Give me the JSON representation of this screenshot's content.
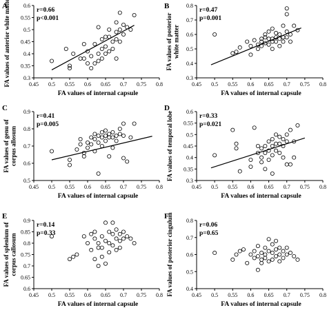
{
  "chart_data": [
    {
      "type": "scatter",
      "panel": "A",
      "r_text": "r=0.66",
      "p_text": "p<0.001",
      "xlabel": "FA values of internal capsule",
      "ylabel": "FA values of anterior white matter",
      "xlim": [
        0.45,
        0.8
      ],
      "ylim": [
        0.3,
        0.6
      ],
      "x_ticks": [
        "0.45",
        "0.5",
        "0.55",
        "0.6",
        "0.65",
        "0.7",
        "0.75",
        "0.8"
      ],
      "y_ticks": [
        "0.3",
        "0.35",
        "0.4",
        "0.45",
        "0.5",
        "0.55",
        "0.6"
      ],
      "fit_line": {
        "x": [
          0.5,
          0.73
        ],
        "y": [
          0.333,
          0.518
        ]
      },
      "points": [
        [
          0.5,
          0.37
        ],
        [
          0.54,
          0.42
        ],
        [
          0.55,
          0.35
        ],
        [
          0.55,
          0.34
        ],
        [
          0.56,
          0.4
        ],
        [
          0.58,
          0.38
        ],
        [
          0.59,
          0.44
        ],
        [
          0.59,
          0.38
        ],
        [
          0.6,
          0.41
        ],
        [
          0.6,
          0.36
        ],
        [
          0.61,
          0.39
        ],
        [
          0.61,
          0.34
        ],
        [
          0.62,
          0.36
        ],
        [
          0.62,
          0.44
        ],
        [
          0.63,
          0.51
        ],
        [
          0.63,
          0.4
        ],
        [
          0.63,
          0.37
        ],
        [
          0.64,
          0.46
        ],
        [
          0.64,
          0.42
        ],
        [
          0.64,
          0.38
        ],
        [
          0.65,
          0.47
        ],
        [
          0.65,
          0.43
        ],
        [
          0.65,
          0.4
        ],
        [
          0.66,
          0.5
        ],
        [
          0.66,
          0.47
        ],
        [
          0.66,
          0.41
        ],
        [
          0.67,
          0.45
        ],
        [
          0.67,
          0.42
        ],
        [
          0.68,
          0.53
        ],
        [
          0.68,
          0.49
        ],
        [
          0.68,
          0.46
        ],
        [
          0.68,
          0.38
        ],
        [
          0.69,
          0.57
        ],
        [
          0.69,
          0.5
        ],
        [
          0.69,
          0.45
        ],
        [
          0.7,
          0.52
        ],
        [
          0.7,
          0.48
        ],
        [
          0.71,
          0.51
        ],
        [
          0.72,
          0.5
        ],
        [
          0.73,
          0.56
        ]
      ]
    },
    {
      "type": "scatter",
      "panel": "B",
      "r_text": "r=0.47",
      "p_text": "p=0.001",
      "xlabel": "FA values of internal capsule",
      "ylabel": "FA values of posterior white matter",
      "xlim": [
        0.45,
        0.8
      ],
      "ylim": [
        0.3,
        0.8
      ],
      "x_ticks": [
        "0.45",
        "0.5",
        "0.55",
        "0.6",
        "0.65",
        "0.7",
        "0.75",
        "0.8"
      ],
      "y_ticks": [
        "0.3",
        "0.4",
        "0.5",
        "0.6",
        "0.7",
        "0.8"
      ],
      "fit_line": {
        "x": [
          0.49,
          0.74
        ],
        "y": [
          0.39,
          0.645
        ]
      },
      "points": [
        [
          0.5,
          0.6
        ],
        [
          0.55,
          0.47
        ],
        [
          0.56,
          0.48
        ],
        [
          0.57,
          0.51
        ],
        [
          0.59,
          0.55
        ],
        [
          0.6,
          0.46
        ],
        [
          0.6,
          0.52
        ],
        [
          0.61,
          0.56
        ],
        [
          0.62,
          0.53
        ],
        [
          0.62,
          0.5
        ],
        [
          0.63,
          0.57
        ],
        [
          0.63,
          0.55
        ],
        [
          0.63,
          0.52
        ],
        [
          0.64,
          0.6
        ],
        [
          0.64,
          0.58
        ],
        [
          0.64,
          0.54
        ],
        [
          0.65,
          0.62
        ],
        [
          0.65,
          0.57
        ],
        [
          0.65,
          0.53
        ],
        [
          0.66,
          0.64
        ],
        [
          0.66,
          0.57
        ],
        [
          0.66,
          0.55
        ],
        [
          0.66,
          0.5
        ],
        [
          0.67,
          0.61
        ],
        [
          0.67,
          0.58
        ],
        [
          0.67,
          0.55
        ],
        [
          0.68,
          0.6
        ],
        [
          0.68,
          0.57
        ],
        [
          0.68,
          0.52
        ],
        [
          0.69,
          0.66
        ],
        [
          0.69,
          0.58
        ],
        [
          0.69,
          0.55
        ],
        [
          0.7,
          0.78
        ],
        [
          0.7,
          0.74
        ],
        [
          0.7,
          0.62
        ],
        [
          0.7,
          0.58
        ],
        [
          0.71,
          0.6
        ],
        [
          0.71,
          0.55
        ],
        [
          0.72,
          0.66
        ],
        [
          0.73,
          0.63
        ]
      ]
    },
    {
      "type": "scatter",
      "panel": "C",
      "r_text": "r=0.41",
      "p_text": "p=0.005",
      "xlabel": "FA values of internal capsule",
      "ylabel": "FA values of genu of corpus allosum",
      "xlim": [
        0.45,
        0.8
      ],
      "ylim": [
        0.5,
        0.9
      ],
      "x_ticks": [
        "0.45",
        "0.5",
        "0.55",
        "0.6",
        "0.65",
        "0.7",
        "0.75",
        "0.8"
      ],
      "y_ticks": [
        "0.5",
        "0.6",
        "0.7",
        "0.8",
        "0.9"
      ],
      "fit_line": {
        "x": [
          0.5,
          0.78
        ],
        "y": [
          0.62,
          0.757
        ]
      },
      "points": [
        [
          0.5,
          0.67
        ],
        [
          0.55,
          0.62
        ],
        [
          0.55,
          0.59
        ],
        [
          0.57,
          0.68
        ],
        [
          0.58,
          0.74
        ],
        [
          0.58,
          0.71
        ],
        [
          0.59,
          0.66
        ],
        [
          0.59,
          0.64
        ],
        [
          0.6,
          0.72
        ],
        [
          0.6,
          0.69
        ],
        [
          0.61,
          0.75
        ],
        [
          0.61,
          0.71
        ],
        [
          0.62,
          0.77
        ],
        [
          0.62,
          0.74
        ],
        [
          0.62,
          0.67
        ],
        [
          0.63,
          0.76
        ],
        [
          0.63,
          0.72
        ],
        [
          0.63,
          0.54
        ],
        [
          0.64,
          0.78
        ],
        [
          0.64,
          0.75
        ],
        [
          0.64,
          0.7
        ],
        [
          0.65,
          0.79
        ],
        [
          0.65,
          0.76
        ],
        [
          0.65,
          0.73
        ],
        [
          0.66,
          0.77
        ],
        [
          0.66,
          0.75
        ],
        [
          0.66,
          0.64
        ],
        [
          0.67,
          0.78
        ],
        [
          0.67,
          0.75
        ],
        [
          0.67,
          0.69
        ],
        [
          0.68,
          0.76
        ],
        [
          0.68,
          0.73
        ],
        [
          0.69,
          0.8
        ],
        [
          0.69,
          0.77
        ],
        [
          0.7,
          0.83
        ],
        [
          0.7,
          0.76
        ],
        [
          0.7,
          0.63
        ],
        [
          0.71,
          0.61
        ],
        [
          0.72,
          0.75
        ],
        [
          0.73,
          0.83
        ]
      ]
    },
    {
      "type": "scatter",
      "panel": "D",
      "r_text": "r=0.33",
      "p_text": "p=0.021",
      "xlabel": "FA values of internal capsule",
      "ylabel": "FA values of temporal lobe",
      "xlim": [
        0.45,
        0.8
      ],
      "ylim": [
        0.3,
        0.6
      ],
      "x_ticks": [
        "0.45",
        "0.5",
        "0.55",
        "0.6",
        "0.65",
        "0.7",
        "0.75",
        "0.8"
      ],
      "y_ticks": [
        "0.3",
        "0.35",
        "0.4",
        "0.45",
        "0.5",
        "0.55",
        "0.6"
      ],
      "fit_line": {
        "x": [
          0.49,
          0.75
        ],
        "y": [
          0.355,
          0.485
        ]
      },
      "points": [
        [
          0.5,
          0.41
        ],
        [
          0.55,
          0.52
        ],
        [
          0.56,
          0.46
        ],
        [
          0.56,
          0.44
        ],
        [
          0.57,
          0.34
        ],
        [
          0.6,
          0.39
        ],
        [
          0.6,
          0.36
        ],
        [
          0.61,
          0.53
        ],
        [
          0.62,
          0.45
        ],
        [
          0.62,
          0.42
        ],
        [
          0.63,
          0.44
        ],
        [
          0.63,
          0.4
        ],
        [
          0.63,
          0.38
        ],
        [
          0.64,
          0.45
        ],
        [
          0.64,
          0.42
        ],
        [
          0.64,
          0.35
        ],
        [
          0.65,
          0.47
        ],
        [
          0.65,
          0.43
        ],
        [
          0.65,
          0.39
        ],
        [
          0.66,
          0.48
        ],
        [
          0.66,
          0.45
        ],
        [
          0.66,
          0.41
        ],
        [
          0.66,
          0.33
        ],
        [
          0.67,
          0.5
        ],
        [
          0.67,
          0.46
        ],
        [
          0.67,
          0.43
        ],
        [
          0.68,
          0.49
        ],
        [
          0.68,
          0.46
        ],
        [
          0.68,
          0.42
        ],
        [
          0.69,
          0.48
        ],
        [
          0.69,
          0.45
        ],
        [
          0.69,
          0.4
        ],
        [
          0.7,
          0.5
        ],
        [
          0.7,
          0.47
        ],
        [
          0.7,
          0.37
        ],
        [
          0.71,
          0.52
        ],
        [
          0.71,
          0.37
        ],
        [
          0.72,
          0.47
        ],
        [
          0.72,
          0.4
        ],
        [
          0.73,
          0.54
        ]
      ]
    },
    {
      "type": "scatter",
      "panel": "E",
      "r_text": "r=0.14",
      "p_text": "p=0.33",
      "xlabel": "FA values of internal capsule",
      "ylabel": "FA values of splenium of corpus callosum",
      "xlim": [
        0.45,
        0.8
      ],
      "ylim": [
        0.6,
        0.9
      ],
      "x_ticks": [
        "0.45",
        "0.5",
        "0.55",
        "0.6",
        "0.65",
        "0.7",
        "0.75",
        "0.8"
      ],
      "y_ticks": [
        "0.6",
        "0.65",
        "0.7",
        "0.75",
        "0.8",
        "0.85",
        "0.9"
      ],
      "fit_line": null,
      "points": [
        [
          0.5,
          0.83
        ],
        [
          0.55,
          0.73
        ],
        [
          0.56,
          0.74
        ],
        [
          0.57,
          0.75
        ],
        [
          0.59,
          0.83
        ],
        [
          0.6,
          0.8
        ],
        [
          0.61,
          0.84
        ],
        [
          0.61,
          0.77
        ],
        [
          0.62,
          0.85
        ],
        [
          0.62,
          0.82
        ],
        [
          0.62,
          0.73
        ],
        [
          0.63,
          0.8
        ],
        [
          0.63,
          0.78
        ],
        [
          0.63,
          0.7
        ],
        [
          0.64,
          0.83
        ],
        [
          0.64,
          0.78
        ],
        [
          0.64,
          0.74
        ],
        [
          0.65,
          0.89
        ],
        [
          0.65,
          0.81
        ],
        [
          0.65,
          0.71
        ],
        [
          0.66,
          0.85
        ],
        [
          0.66,
          0.8
        ],
        [
          0.66,
          0.76
        ],
        [
          0.67,
          0.89
        ],
        [
          0.67,
          0.84
        ],
        [
          0.67,
          0.79
        ],
        [
          0.68,
          0.86
        ],
        [
          0.68,
          0.82
        ],
        [
          0.68,
          0.77
        ],
        [
          0.69,
          0.84
        ],
        [
          0.69,
          0.81
        ],
        [
          0.69,
          0.78
        ],
        [
          0.7,
          0.85
        ],
        [
          0.7,
          0.82
        ],
        [
          0.71,
          0.83
        ],
        [
          0.72,
          0.82
        ],
        [
          0.73,
          0.8
        ]
      ]
    },
    {
      "type": "scatter",
      "panel": "F",
      "r_text": "r=0.06",
      "p_text": "p=0.65",
      "xlabel": "FA values of internal capsule",
      "ylabel": "FA values of posterior cingulum",
      "xlim": [
        0.45,
        0.8
      ],
      "ylim": [
        0.4,
        0.8
      ],
      "x_ticks": [
        "0.45",
        "0.5",
        "0.55",
        "0.6",
        "0.65",
        "0.7",
        "0.75",
        "0.8"
      ],
      "y_ticks": [
        "0.4",
        "0.5",
        "0.6",
        "0.7",
        "0.8"
      ],
      "fit_line": null,
      "points": [
        [
          0.5,
          0.61
        ],
        [
          0.55,
          0.57
        ],
        [
          0.56,
          0.6
        ],
        [
          0.57,
          0.62
        ],
        [
          0.58,
          0.63
        ],
        [
          0.59,
          0.55
        ],
        [
          0.6,
          0.6
        ],
        [
          0.61,
          0.58
        ],
        [
          0.61,
          0.62
        ],
        [
          0.62,
          0.65
        ],
        [
          0.62,
          0.59
        ],
        [
          0.62,
          0.51
        ],
        [
          0.63,
          0.61
        ],
        [
          0.63,
          0.57
        ],
        [
          0.63,
          0.55
        ],
        [
          0.64,
          0.64
        ],
        [
          0.64,
          0.6
        ],
        [
          0.64,
          0.58
        ],
        [
          0.65,
          0.69
        ],
        [
          0.65,
          0.62
        ],
        [
          0.65,
          0.56
        ],
        [
          0.66,
          0.66
        ],
        [
          0.66,
          0.61
        ],
        [
          0.66,
          0.57
        ],
        [
          0.67,
          0.68
        ],
        [
          0.67,
          0.63
        ],
        [
          0.67,
          0.59
        ],
        [
          0.68,
          0.64
        ],
        [
          0.68,
          0.6
        ],
        [
          0.68,
          0.56
        ],
        [
          0.69,
          0.62
        ],
        [
          0.69,
          0.58
        ],
        [
          0.7,
          0.64
        ],
        [
          0.7,
          0.6
        ],
        [
          0.71,
          0.61
        ],
        [
          0.72,
          0.59
        ],
        [
          0.73,
          0.57
        ]
      ]
    }
  ]
}
